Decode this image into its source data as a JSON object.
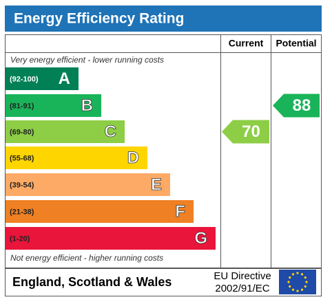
{
  "title": "Energy Efficiency Rating",
  "columns": {
    "current": "Current",
    "potential": "Potential"
  },
  "top_note": "Very energy efficient - lower running costs",
  "bottom_note": "Not energy efficient - higher running costs",
  "bands": [
    {
      "range": "(92-100)",
      "letter": "A",
      "color": "#008054"
    },
    {
      "range": "(81-91)",
      "letter": "B",
      "color": "#19b459"
    },
    {
      "range": "(69-80)",
      "letter": "C",
      "color": "#8dce46"
    },
    {
      "range": "(55-68)",
      "letter": "D",
      "color": "#ffd500"
    },
    {
      "range": "(39-54)",
      "letter": "E",
      "color": "#fcaa65"
    },
    {
      "range": "(21-38)",
      "letter": "F",
      "color": "#ef8023"
    },
    {
      "range": "(1-20)",
      "letter": "G",
      "color": "#e9153b"
    }
  ],
  "current": {
    "value": 70
  },
  "potential": {
    "value": 88
  },
  "footer": {
    "region": "England, Scotland & Wales",
    "directive_line1": "EU Directive",
    "directive_line2": "2002/91/EC"
  }
}
